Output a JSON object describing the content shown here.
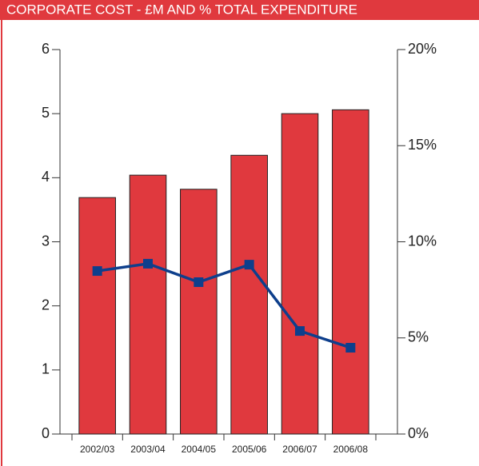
{
  "chart_data": {
    "type": "bar-line",
    "title": "CORPORATE COST - £M AND % TOTAL EXPENDITURE",
    "categories": [
      "2002/03",
      "2003/04",
      "2004/05",
      "2005/06",
      "2006/07",
      "2006/08"
    ],
    "series": [
      {
        "type": "bar",
        "color": "#e0393e",
        "values": [
          3.69,
          4.04,
          3.82,
          4.35,
          5.0,
          5.06
        ]
      },
      {
        "type": "line",
        "axis": "y2",
        "color": "#0e3f8c",
        "values": [
          8.48,
          8.86,
          7.9,
          8.81,
          5.36,
          4.49
        ]
      }
    ],
    "ylim": [
      0,
      6
    ],
    "yticks": [
      0,
      1,
      2,
      3,
      4,
      5,
      6
    ],
    "y2lim": [
      0,
      20
    ],
    "y2ticks": [
      {
        "value": 0,
        "label": "0%"
      },
      {
        "value": 5,
        "label": "5%"
      },
      {
        "value": 10,
        "label": "10%"
      },
      {
        "value": 15,
        "label": "15%"
      },
      {
        "value": 20,
        "label": "20%"
      }
    ]
  }
}
